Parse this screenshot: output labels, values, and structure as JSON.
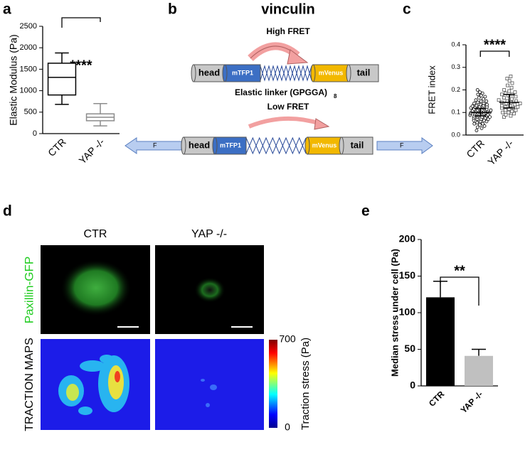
{
  "chart_data": [
    {
      "type": "box",
      "panel": "a",
      "ylabel": "Elastic Modulus (Pa)",
      "categories": [
        "CTR",
        "YAP -/-"
      ],
      "boxes": [
        {
          "min": 680,
          "q1": 900,
          "median": 1310,
          "q3": 1640,
          "max": 1880,
          "color": "#000000"
        },
        {
          "min": 180,
          "q1": 300,
          "median": 380,
          "q3": 460,
          "max": 700,
          "color": "#8c8c8c"
        }
      ],
      "ylim": [
        0,
        2500
      ],
      "yticks": [
        0,
        500,
        1000,
        1500,
        2000,
        2500
      ],
      "significance": "****"
    },
    {
      "type": "strip",
      "panel": "c",
      "ylabel": "FRET index",
      "categories": [
        "CTR",
        "YAP -/-"
      ],
      "series": [
        {
          "color": "#000000",
          "marker": "circle",
          "center": 0.1,
          "lower": 0.085,
          "upper": 0.118,
          "values": [
            0.02,
            0.03,
            0.035,
            0.04,
            0.045,
            0.05,
            0.05,
            0.055,
            0.06,
            0.06,
            0.065,
            0.065,
            0.07,
            0.07,
            0.07,
            0.075,
            0.075,
            0.08,
            0.08,
            0.08,
            0.082,
            0.085,
            0.085,
            0.088,
            0.09,
            0.09,
            0.09,
            0.092,
            0.095,
            0.095,
            0.097,
            0.1,
            0.1,
            0.1,
            0.1,
            0.102,
            0.105,
            0.105,
            0.108,
            0.11,
            0.11,
            0.11,
            0.112,
            0.115,
            0.115,
            0.118,
            0.12,
            0.12,
            0.122,
            0.125,
            0.125,
            0.128,
            0.13,
            0.13,
            0.135,
            0.135,
            0.14,
            0.14,
            0.145,
            0.15,
            0.15,
            0.155,
            0.16,
            0.165,
            0.17,
            0.175,
            0.18,
            0.185,
            0.19,
            0.2
          ]
        },
        {
          "color": "#555555",
          "marker": "square",
          "center": 0.145,
          "lower": 0.12,
          "upper": 0.18,
          "values": [
            0.08,
            0.085,
            0.09,
            0.095,
            0.1,
            0.1,
            0.105,
            0.11,
            0.11,
            0.115,
            0.12,
            0.12,
            0.125,
            0.125,
            0.13,
            0.13,
            0.135,
            0.14,
            0.14,
            0.145,
            0.145,
            0.15,
            0.15,
            0.155,
            0.16,
            0.165,
            0.17,
            0.175,
            0.18,
            0.18,
            0.185,
            0.19,
            0.195,
            0.2,
            0.21,
            0.22,
            0.23,
            0.24,
            0.25,
            0.26
          ]
        }
      ],
      "ylim": [
        0,
        0.4
      ],
      "yticks": [
        {
          "value": 0,
          "label": "0.0"
        },
        0.1,
        0.2,
        0.3,
        0.4
      ],
      "significance": "****"
    },
    {
      "type": "bar",
      "panel": "e",
      "ylabel": "Median stress under cell (Pa)",
      "categories": [
        "CTR",
        "YAP -/-"
      ],
      "values": [
        121,
        41
      ],
      "errors": [
        22,
        9
      ],
      "colors": [
        "#000000",
        "#c0c0c0"
      ],
      "ylim": [
        0,
        200
      ],
      "yticks": [
        0,
        50,
        100,
        150,
        200
      ],
      "significance": "**"
    }
  ],
  "diagram": {
    "panel": "b",
    "title": "vinculin",
    "high_fret": "High FRET",
    "low_fret": "Low FRET",
    "linker": "Elastic linker (GPGGA)",
    "linker_subscript": "8",
    "top_construct": [
      "head",
      "mTFP1",
      "mVenus",
      "tail"
    ],
    "bottom_construct": [
      "head",
      "mTFP1",
      "mVenus",
      "tail"
    ],
    "force_left": "F",
    "force_right": "F"
  },
  "images": {
    "panel": "d",
    "columns": [
      "CTR",
      "YAP -/-"
    ],
    "rows": [
      "Paxillin-GFP",
      "TRACTION MAPS"
    ],
    "colorbar": {
      "label": "Traction stress (Pa)",
      "ticks": [
        0,
        700
      ]
    }
  }
}
